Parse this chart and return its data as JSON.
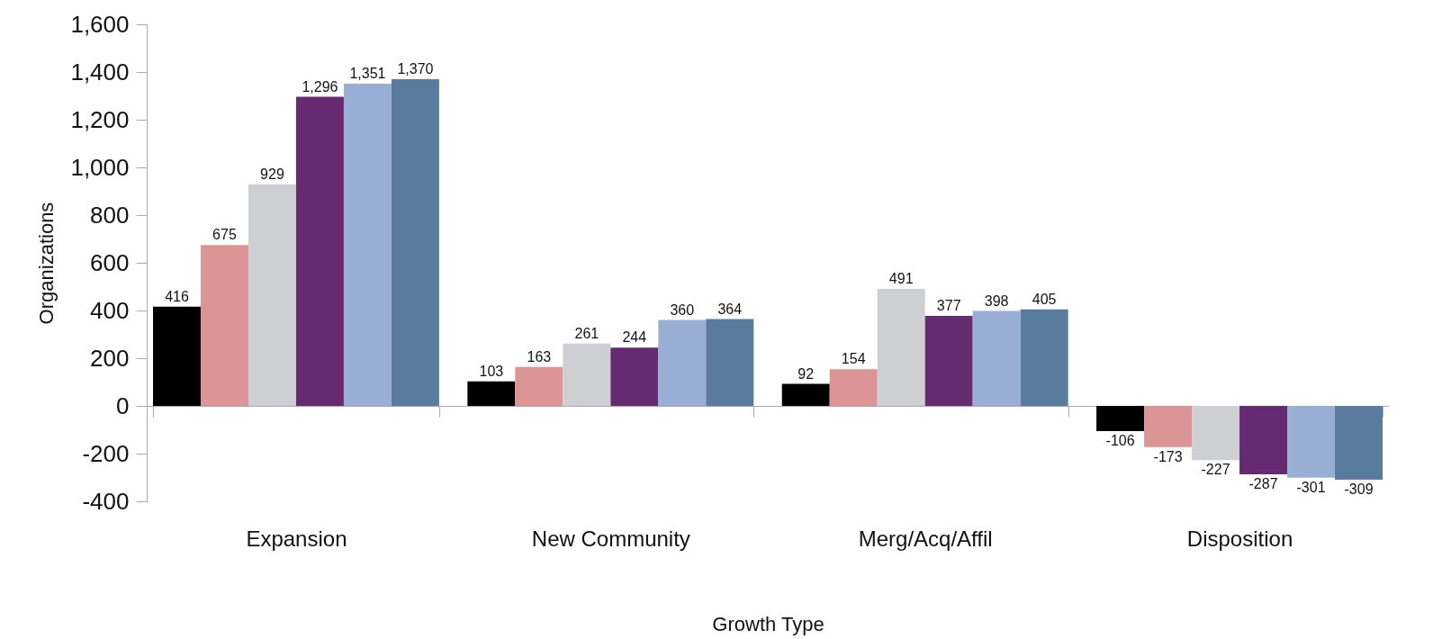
{
  "chart_data": {
    "type": "bar",
    "xlabel": "Growth Type",
    "ylabel": "Organizations",
    "categories": [
      "Expansion",
      "New Community",
      "Merg/Acq/Affil",
      "Disposition"
    ],
    "series": [
      {
        "color": "#000000",
        "values": [
          416,
          103,
          92,
          -106
        ],
        "value_labels": [
          "416",
          "103",
          "92",
          "-106"
        ]
      },
      {
        "color": "#dc9594",
        "values": [
          675,
          163,
          154,
          -173
        ],
        "value_labels": [
          "675",
          "163",
          "154",
          "-173"
        ]
      },
      {
        "color": "#cdcfd3",
        "values": [
          929,
          261,
          491,
          -227
        ],
        "value_labels": [
          "929",
          "261",
          "491",
          "-227"
        ]
      },
      {
        "color": "#662a72",
        "values": [
          1296,
          244,
          377,
          -287
        ],
        "value_labels": [
          "1,296",
          "244",
          "377",
          "-287"
        ]
      },
      {
        "color": "#98aed4",
        "values": [
          1351,
          360,
          398,
          -301
        ],
        "value_labels": [
          "1,351",
          "360",
          "398",
          "-301"
        ]
      },
      {
        "color": "#587b9e",
        "values": [
          1370,
          364,
          405,
          -309
        ],
        "value_labels": [
          "1,370",
          "364",
          "405",
          "-309"
        ]
      }
    ],
    "ylim": [
      -400,
      1600
    ],
    "yticks": [
      -400,
      -200,
      0,
      200,
      400,
      600,
      800,
      {
        "value": 1000,
        "label": "1,000"
      },
      {
        "value": 1200,
        "label": "1,200"
      },
      {
        "value": 1400,
        "label": "1,400"
      },
      {
        "value": 1600,
        "label": "1,600"
      }
    ],
    "legend": false
  }
}
